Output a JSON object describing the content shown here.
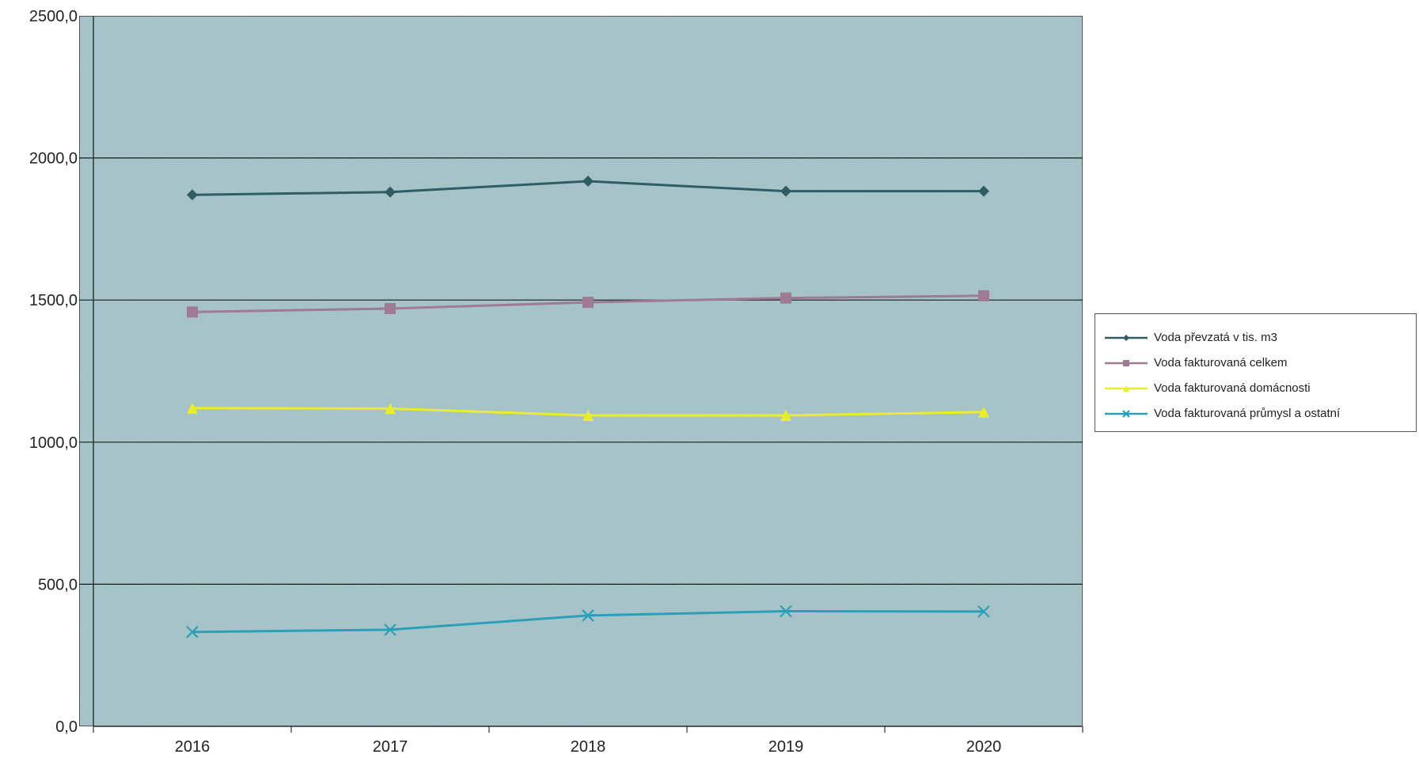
{
  "chart_data": {
    "type": "line",
    "categories": [
      "2016",
      "2017",
      "2018",
      "2019",
      "2020"
    ],
    "ylim": [
      0,
      2500
    ],
    "yticks": [
      "0,0",
      "500,0",
      "1000,0",
      "1500,0",
      "2000,0",
      "2500,0"
    ],
    "grid": true,
    "legend_position": "right",
    "plot_background": "#a9c7cc",
    "series": [
      {
        "name": "Voda převzatá v  tis. m3",
        "color": "#2e5e63",
        "marker": "diamond",
        "values": [
          1870,
          1880,
          1918,
          1883,
          1883
        ]
      },
      {
        "name": "Voda fakturovaná celkem",
        "color": "#9e7a93",
        "marker": "square",
        "values": [
          1458,
          1470,
          1492,
          1507,
          1515
        ]
      },
      {
        "name": "Voda fakturovaná domácnosti",
        "color": "#e8ee2a",
        "marker": "triangle",
        "values": [
          1120,
          1118,
          1094,
          1094,
          1106
        ]
      },
      {
        "name": "Voda fakturovaná průmysl a ostatní",
        "color": "#2a9fb8",
        "marker": "x",
        "values": [
          332,
          340,
          390,
          405,
          404
        ]
      }
    ]
  }
}
